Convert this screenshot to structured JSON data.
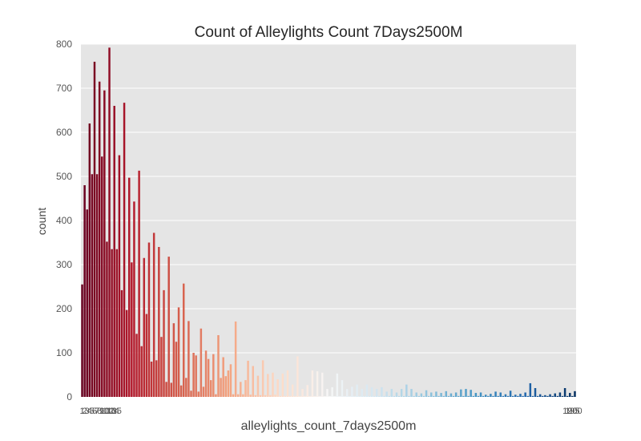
{
  "chart_data": {
    "type": "bar",
    "title": "Count of Alleylights Count 7Days2500M",
    "xlabel": "alleylights_count_7days2500m",
    "ylabel": "count",
    "ylim": [
      0,
      800
    ],
    "yticks": [
      0,
      100,
      200,
      300,
      400,
      500,
      600,
      700,
      800
    ],
    "grid": true,
    "legend": "none",
    "colormap": "RdBu",
    "x_tick_labels_first": [
      "1",
      "2",
      "3",
      "4",
      "5",
      "6",
      "7",
      "8",
      "9",
      "10",
      "11",
      "12",
      "13",
      "14",
      "15"
    ],
    "x_tick_labels_last": [
      "190",
      "195",
      "200"
    ],
    "categories_count": 200,
    "values": [
      255,
      480,
      425,
      620,
      505,
      760,
      505,
      715,
      545,
      695,
      352,
      792,
      335,
      660,
      335,
      548,
      242,
      667,
      197,
      497,
      305,
      443,
      143,
      513,
      115,
      315,
      188,
      350,
      80,
      372,
      83,
      340,
      136,
      242,
      34,
      318,
      32,
      167,
      125,
      203,
      26,
      257,
      43,
      172,
      14,
      100,
      94,
      12,
      155,
      23,
      105,
      86,
      38,
      97,
      6,
      140,
      43,
      90,
      47,
      60,
      74,
      6,
      171,
      6,
      34,
      6,
      38,
      82,
      5,
      70,
      4,
      48,
      4,
      83,
      4,
      52,
      4,
      55,
      5,
      40,
      2,
      53,
      2,
      60,
      2,
      28,
      2,
      92,
      2,
      18,
      2,
      27,
      2,
      60,
      2,
      58,
      2,
      55,
      2,
      18,
      2,
      22,
      2,
      53,
      2,
      38,
      2,
      18,
      2,
      23,
      2,
      28,
      2,
      18,
      2,
      28,
      2,
      22,
      2,
      18,
      2,
      22,
      2,
      12,
      2,
      18,
      2,
      10,
      2,
      18,
      2,
      28,
      2,
      18,
      2,
      10,
      2,
      8,
      2,
      15,
      2,
      10,
      2,
      12,
      2,
      9,
      2,
      13,
      2,
      8,
      2,
      10,
      2,
      17,
      2,
      18,
      2,
      16,
      2,
      9,
      2,
      10,
      2,
      5,
      2,
      7,
      2,
      12,
      2,
      10,
      2,
      6,
      2,
      14,
      2,
      5,
      2,
      7,
      2,
      10,
      2,
      31,
      2,
      20,
      2,
      6,
      2,
      4,
      2,
      6,
      2,
      8,
      2,
      10,
      2,
      20,
      2,
      9,
      2,
      13
    ]
  }
}
